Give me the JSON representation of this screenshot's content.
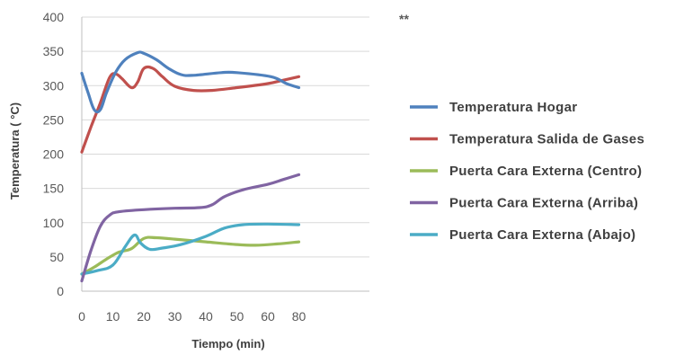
{
  "chart_data": {
    "type": "line",
    "title": "",
    "annotation": "**",
    "xlabel": "Tiempo (min)",
    "ylabel": "Temperatura ( °C)",
    "xlim": [
      0,
      100
    ],
    "ylim": [
      0,
      400
    ],
    "x_ticks": [
      0,
      10,
      20,
      30,
      40,
      50,
      60,
      80
    ],
    "y_ticks": [
      0,
      50,
      100,
      150,
      200,
      250,
      300,
      350,
      400
    ],
    "grid": "horizontal",
    "legend_position": "right",
    "series": [
      {
        "name": "Temperatura Hogar",
        "color": "#4f81bd",
        "points": [
          [
            0,
            318
          ],
          [
            2,
            290
          ],
          [
            4,
            265
          ],
          [
            6,
            265
          ],
          [
            8,
            290
          ],
          [
            11,
            320
          ],
          [
            14,
            338
          ],
          [
            18,
            348
          ],
          [
            20,
            347
          ],
          [
            24,
            338
          ],
          [
            28,
            325
          ],
          [
            32,
            316
          ],
          [
            36,
            315
          ],
          [
            45,
            319
          ],
          [
            50,
            319
          ],
          [
            62,
            313
          ],
          [
            72,
            303
          ],
          [
            80,
            297
          ]
        ]
      },
      {
        "name": "Temperatura Salida de Gases",
        "color": "#c0504d",
        "points": [
          [
            0,
            203
          ],
          [
            3,
            240
          ],
          [
            6,
            275
          ],
          [
            9,
            312
          ],
          [
            11,
            317
          ],
          [
            13,
            310
          ],
          [
            16,
            297
          ],
          [
            18,
            305
          ],
          [
            20,
            325
          ],
          [
            23,
            325
          ],
          [
            26,
            313
          ],
          [
            30,
            299
          ],
          [
            36,
            293
          ],
          [
            42,
            293
          ],
          [
            50,
            297
          ],
          [
            60,
            303
          ],
          [
            70,
            308
          ],
          [
            80,
            313
          ]
        ]
      },
      {
        "name": "Puerta Cara Externa (Centro)",
        "color": "#9bbb59",
        "points": [
          [
            0,
            25
          ],
          [
            4,
            35
          ],
          [
            8,
            47
          ],
          [
            12,
            57
          ],
          [
            16,
            62
          ],
          [
            20,
            77
          ],
          [
            24,
            78
          ],
          [
            30,
            76
          ],
          [
            40,
            72
          ],
          [
            50,
            68
          ],
          [
            56,
            67
          ],
          [
            66,
            69
          ],
          [
            80,
            72
          ]
        ]
      },
      {
        "name": "Puerta Cara Externa (Arriba)",
        "color": "#8064a2",
        "points": [
          [
            0,
            15
          ],
          [
            3,
            60
          ],
          [
            6,
            95
          ],
          [
            9,
            111
          ],
          [
            12,
            116
          ],
          [
            20,
            119
          ],
          [
            30,
            121
          ],
          [
            38,
            122
          ],
          [
            42,
            126
          ],
          [
            46,
            138
          ],
          [
            52,
            148
          ],
          [
            60,
            156
          ],
          [
            70,
            163
          ],
          [
            80,
            170
          ]
        ]
      },
      {
        "name": "Puerta Cara Externa (Abajo)",
        "color": "#4bacc6",
        "points": [
          [
            0,
            25
          ],
          [
            5,
            30
          ],
          [
            10,
            38
          ],
          [
            14,
            65
          ],
          [
            17,
            82
          ],
          [
            19,
            70
          ],
          [
            22,
            61
          ],
          [
            26,
            63
          ],
          [
            32,
            68
          ],
          [
            40,
            80
          ],
          [
            46,
            92
          ],
          [
            52,
            97
          ],
          [
            60,
            98
          ],
          [
            80,
            97
          ]
        ]
      }
    ]
  }
}
